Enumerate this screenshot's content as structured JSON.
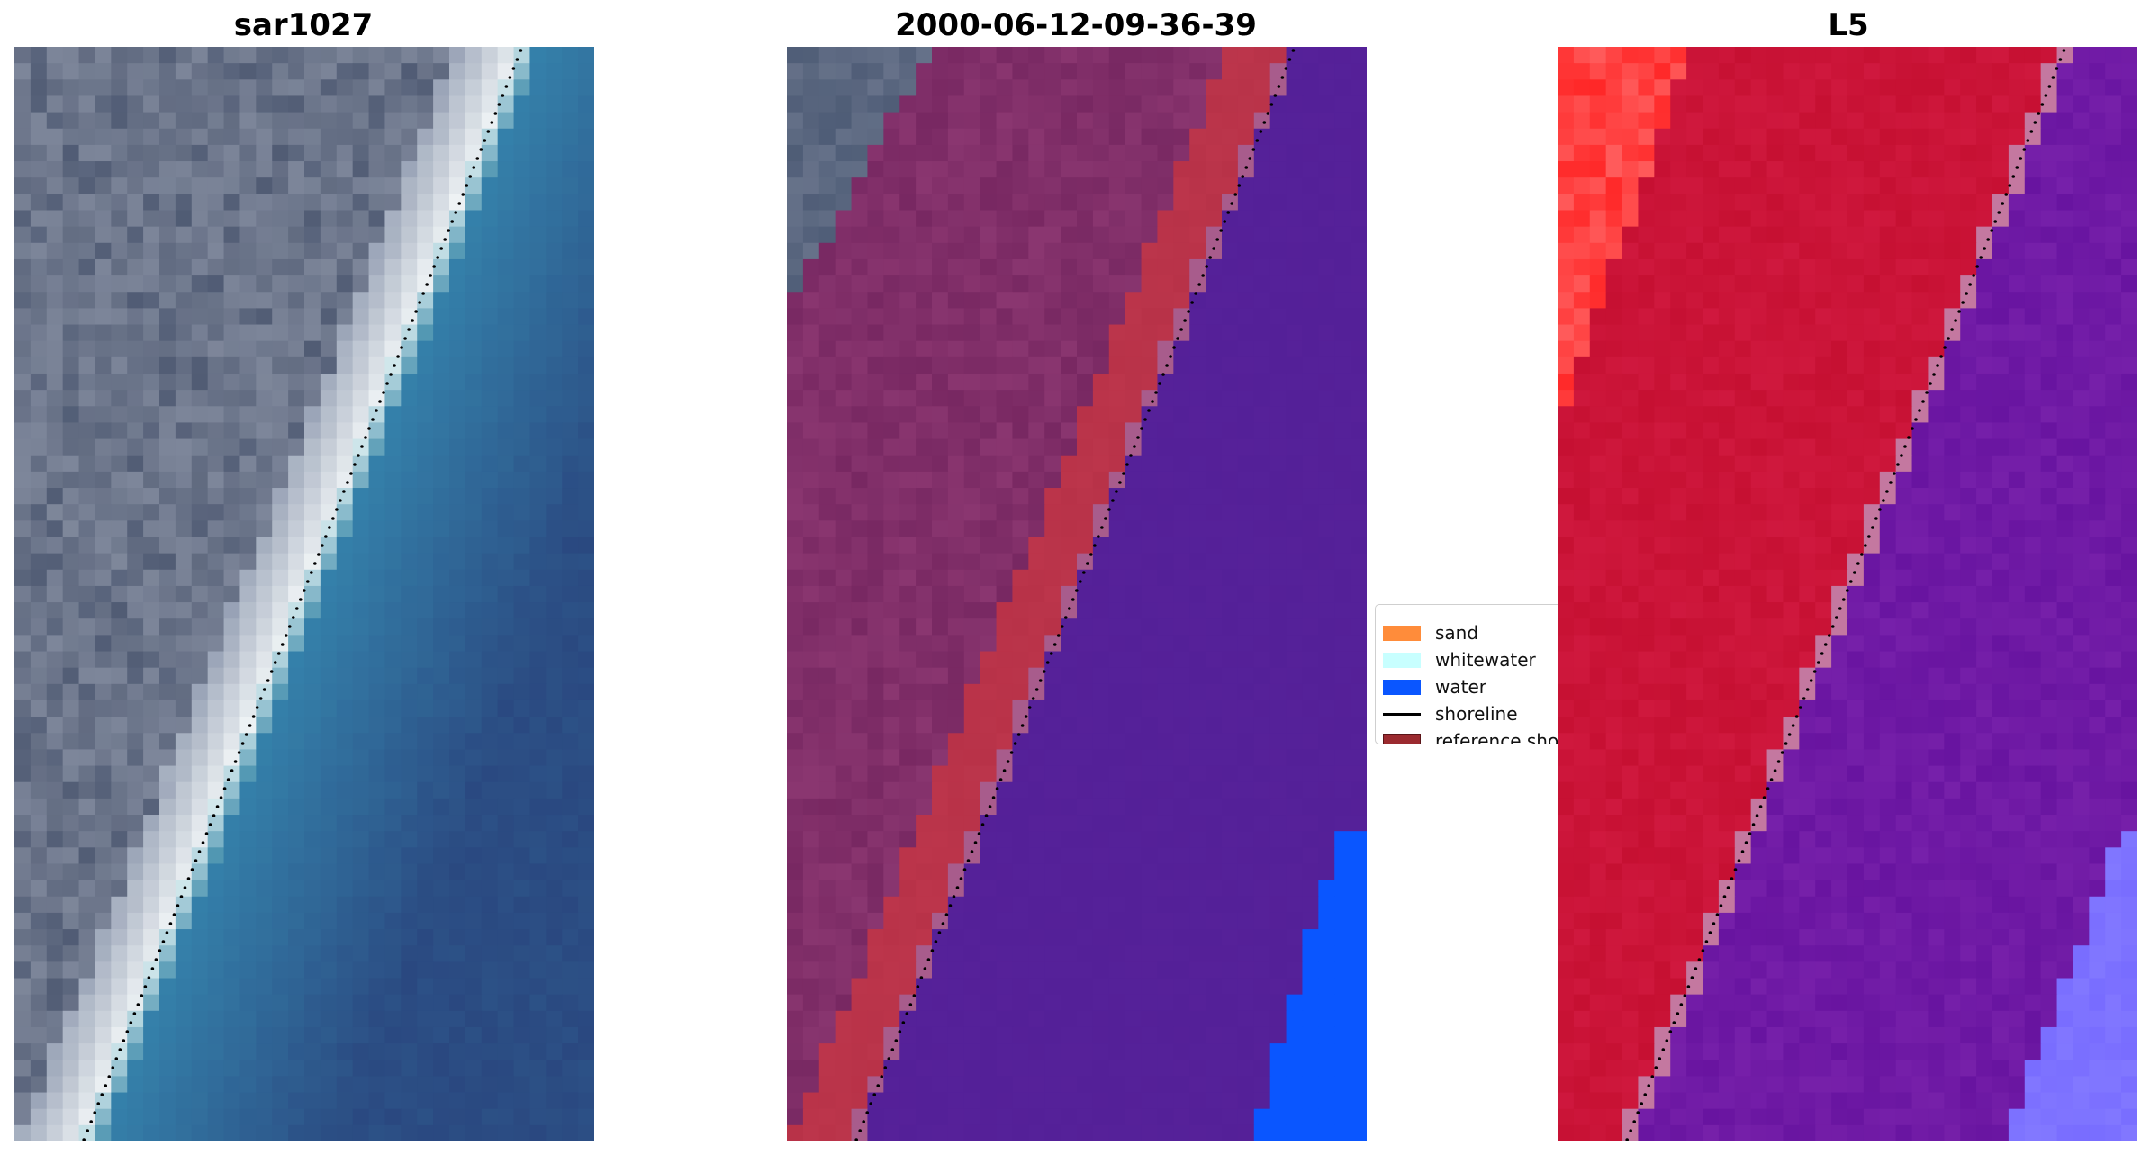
{
  "panels": {
    "rgb": {
      "title": "sar1027"
    },
    "classified": {
      "title": "2000-06-12-09-36-39"
    },
    "mndwi": {
      "title": "L5"
    }
  },
  "legend": {
    "items": [
      {
        "label": "sand",
        "color": "#ff8c3a",
        "kind": "patch"
      },
      {
        "label": "whitewater",
        "color": "#c8ffff",
        "kind": "patch"
      },
      {
        "label": "water",
        "color": "#0a56ff",
        "kind": "patch"
      },
      {
        "label": "shoreline",
        "color": "#000000",
        "kind": "line"
      },
      {
        "label": "reference shoreline",
        "color": "#9b2a2f",
        "kind": "patch"
      }
    ]
  },
  "colors": {
    "land_gray": "#5f6a80",
    "beach_white": "#eef2f4",
    "ocean_blue": "#3478a6",
    "deep_blue": "#2c4f86",
    "overlay_land": "#7e2a66",
    "overlay_water": "#55229a",
    "reference_band": "#b83348",
    "water_class": "#0a56ff",
    "index_red": "#c8102e",
    "index_bright_red": "#ff2a2a",
    "index_purple": "#6b14a0",
    "index_light_purple": "#7a6cff"
  }
}
